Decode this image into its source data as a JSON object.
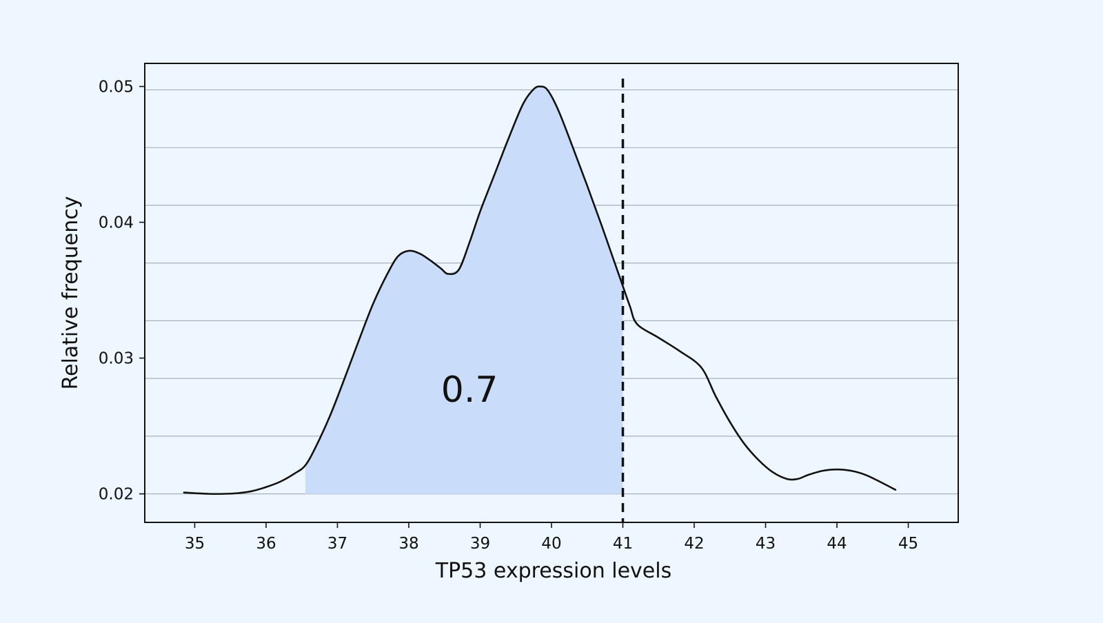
{
  "chart_data": {
    "type": "area",
    "title": "",
    "xlabel": "TP53 expression levels",
    "ylabel": "Relative frequency",
    "xlim": [
      34.3,
      45.7
    ],
    "ylim": [
      0.0179,
      0.0517
    ],
    "x_ticks": [
      "35",
      "36",
      "37",
      "38",
      "39",
      "40",
      "41",
      "42",
      "43",
      "44",
      "45"
    ],
    "y_ticks": [
      "0.02",
      "0.03",
      "0.04",
      "0.05"
    ],
    "grid": "horizontal",
    "series": [
      {
        "x": [
          34.85,
          35.0,
          35.2,
          35.4,
          35.6,
          35.8,
          36.0,
          36.2,
          36.4,
          36.55,
          36.7,
          36.9,
          37.1,
          37.3,
          37.5,
          37.7,
          37.85,
          38.0,
          38.15,
          38.3,
          38.45,
          38.55,
          38.7,
          38.85,
          39.0,
          39.2,
          39.4,
          39.6,
          39.75,
          39.85,
          39.95,
          40.1,
          40.3,
          40.5,
          40.7,
          40.9,
          41.0,
          41.1,
          41.2,
          41.5,
          41.8,
          42.1,
          42.3,
          42.5,
          42.7,
          42.9,
          43.1,
          43.3,
          43.45,
          43.6,
          43.8,
          44.0,
          44.2,
          44.4,
          44.6,
          44.82
        ],
        "y": [
          0.0201,
          0.02005,
          0.02,
          0.02,
          0.02005,
          0.0202,
          0.0205,
          0.0209,
          0.0215,
          0.0221,
          0.0235,
          0.0258,
          0.0285,
          0.0313,
          0.034,
          0.0362,
          0.0375,
          0.0379,
          0.0377,
          0.0372,
          0.0366,
          0.0362,
          0.0365,
          0.0385,
          0.0408,
          0.0435,
          0.0462,
          0.0487,
          0.0498,
          0.05,
          0.0497,
          0.0482,
          0.0455,
          0.0427,
          0.0398,
          0.0368,
          0.0353,
          0.0338,
          0.0325,
          0.0315,
          0.0305,
          0.0293,
          0.0272,
          0.0253,
          0.0237,
          0.0225,
          0.0216,
          0.0211,
          0.0211,
          0.0214,
          0.0217,
          0.0218,
          0.0217,
          0.0214,
          0.0209,
          0.0203
        ]
      }
    ],
    "shaded_range": [
      36.55,
      41.0
    ],
    "vertical_line": 41.0,
    "annotations": [
      {
        "text": "0.7",
        "x": 38.9,
        "y": 0.0277
      }
    ],
    "colors": {
      "background": "#eef6ff",
      "fill": "#c9ddfb",
      "line": "#111111",
      "grid": "#a7b1bd",
      "axis": "#111111"
    }
  }
}
